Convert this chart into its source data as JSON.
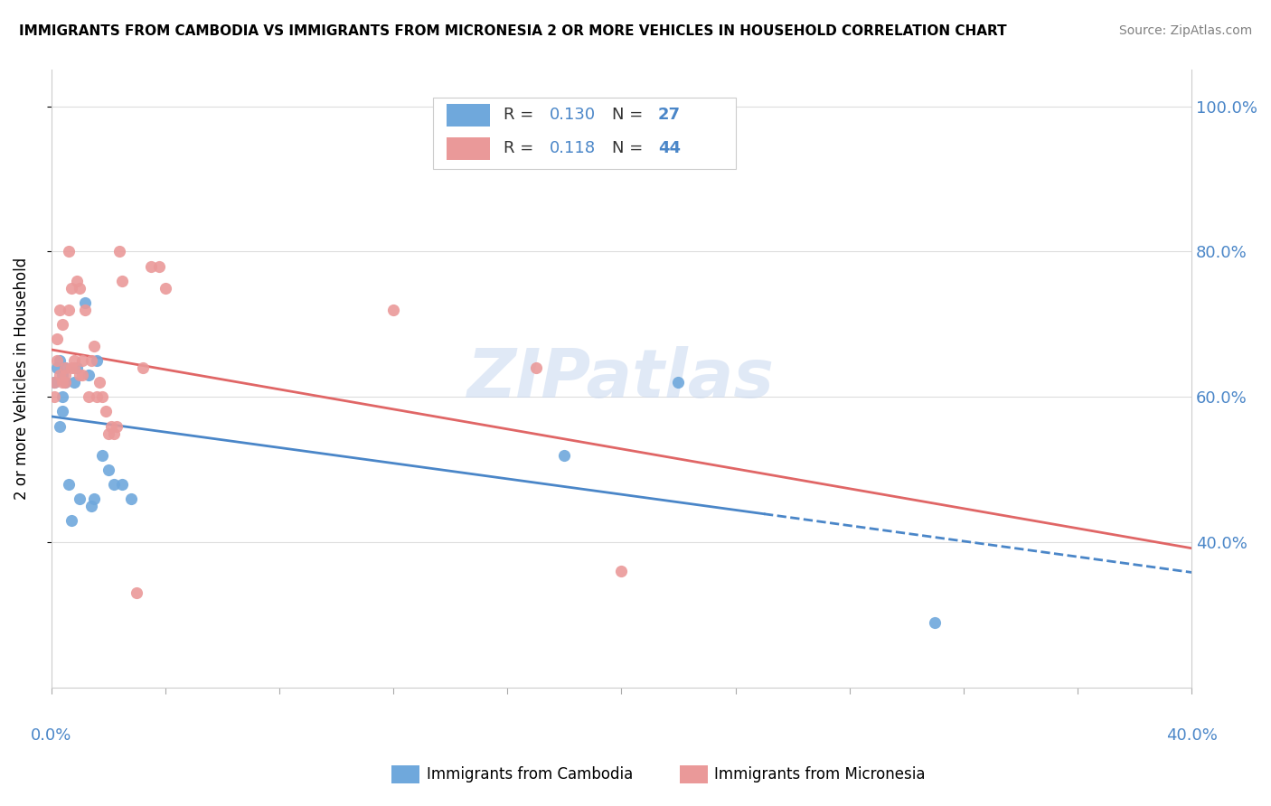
{
  "title": "IMMIGRANTS FROM CAMBODIA VS IMMIGRANTS FROM MICRONESIA 2 OR MORE VEHICLES IN HOUSEHOLD CORRELATION CHART",
  "source": "Source: ZipAtlas.com",
  "ylabel": "2 or more Vehicles in Household",
  "xlim": [
    0.0,
    0.4
  ],
  "ylim": [
    0.2,
    1.05
  ],
  "cambodia_color": "#6fa8dc",
  "micronesia_color": "#ea9999",
  "cambodia_line_color": "#4a86c8",
  "micronesia_line_color": "#e06666",
  "R_cambodia": 0.13,
  "N_cambodia": 27,
  "R_micronesia": 0.118,
  "N_micronesia": 44,
  "legend_label_cambodia": "Immigrants from Cambodia",
  "legend_label_micronesia": "Immigrants from Micronesia",
  "watermark": "ZIPatlas",
  "cambodia_x": [
    0.001,
    0.002,
    0.003,
    0.003,
    0.004,
    0.004,
    0.004,
    0.005,
    0.005,
    0.006,
    0.007,
    0.008,
    0.009,
    0.01,
    0.012,
    0.013,
    0.014,
    0.015,
    0.016,
    0.018,
    0.02,
    0.022,
    0.025,
    0.028,
    0.18,
    0.22,
    0.31
  ],
  "cambodia_y": [
    0.62,
    0.64,
    0.56,
    0.65,
    0.63,
    0.6,
    0.58,
    0.62,
    0.64,
    0.48,
    0.43,
    0.62,
    0.64,
    0.46,
    0.73,
    0.63,
    0.45,
    0.46,
    0.65,
    0.52,
    0.5,
    0.48,
    0.48,
    0.46,
    0.52,
    0.62,
    0.29
  ],
  "micronesia_x": [
    0.001,
    0.001,
    0.002,
    0.002,
    0.003,
    0.003,
    0.004,
    0.004,
    0.005,
    0.005,
    0.005,
    0.006,
    0.006,
    0.007,
    0.007,
    0.008,
    0.008,
    0.009,
    0.01,
    0.01,
    0.011,
    0.011,
    0.012,
    0.013,
    0.014,
    0.015,
    0.016,
    0.017,
    0.018,
    0.019,
    0.02,
    0.021,
    0.022,
    0.023,
    0.024,
    0.025,
    0.17,
    0.2,
    0.03,
    0.032,
    0.035,
    0.038,
    0.04,
    0.12
  ],
  "micronesia_y": [
    0.62,
    0.6,
    0.65,
    0.68,
    0.63,
    0.72,
    0.62,
    0.7,
    0.64,
    0.63,
    0.62,
    0.8,
    0.72,
    0.64,
    0.75,
    0.64,
    0.65,
    0.76,
    0.75,
    0.63,
    0.65,
    0.63,
    0.72,
    0.6,
    0.65,
    0.67,
    0.6,
    0.62,
    0.6,
    0.58,
    0.55,
    0.56,
    0.55,
    0.56,
    0.8,
    0.76,
    0.64,
    0.36,
    0.33,
    0.64,
    0.78,
    0.78,
    0.75,
    0.72
  ],
  "background_color": "#ffffff",
  "grid_color": "#dddddd"
}
